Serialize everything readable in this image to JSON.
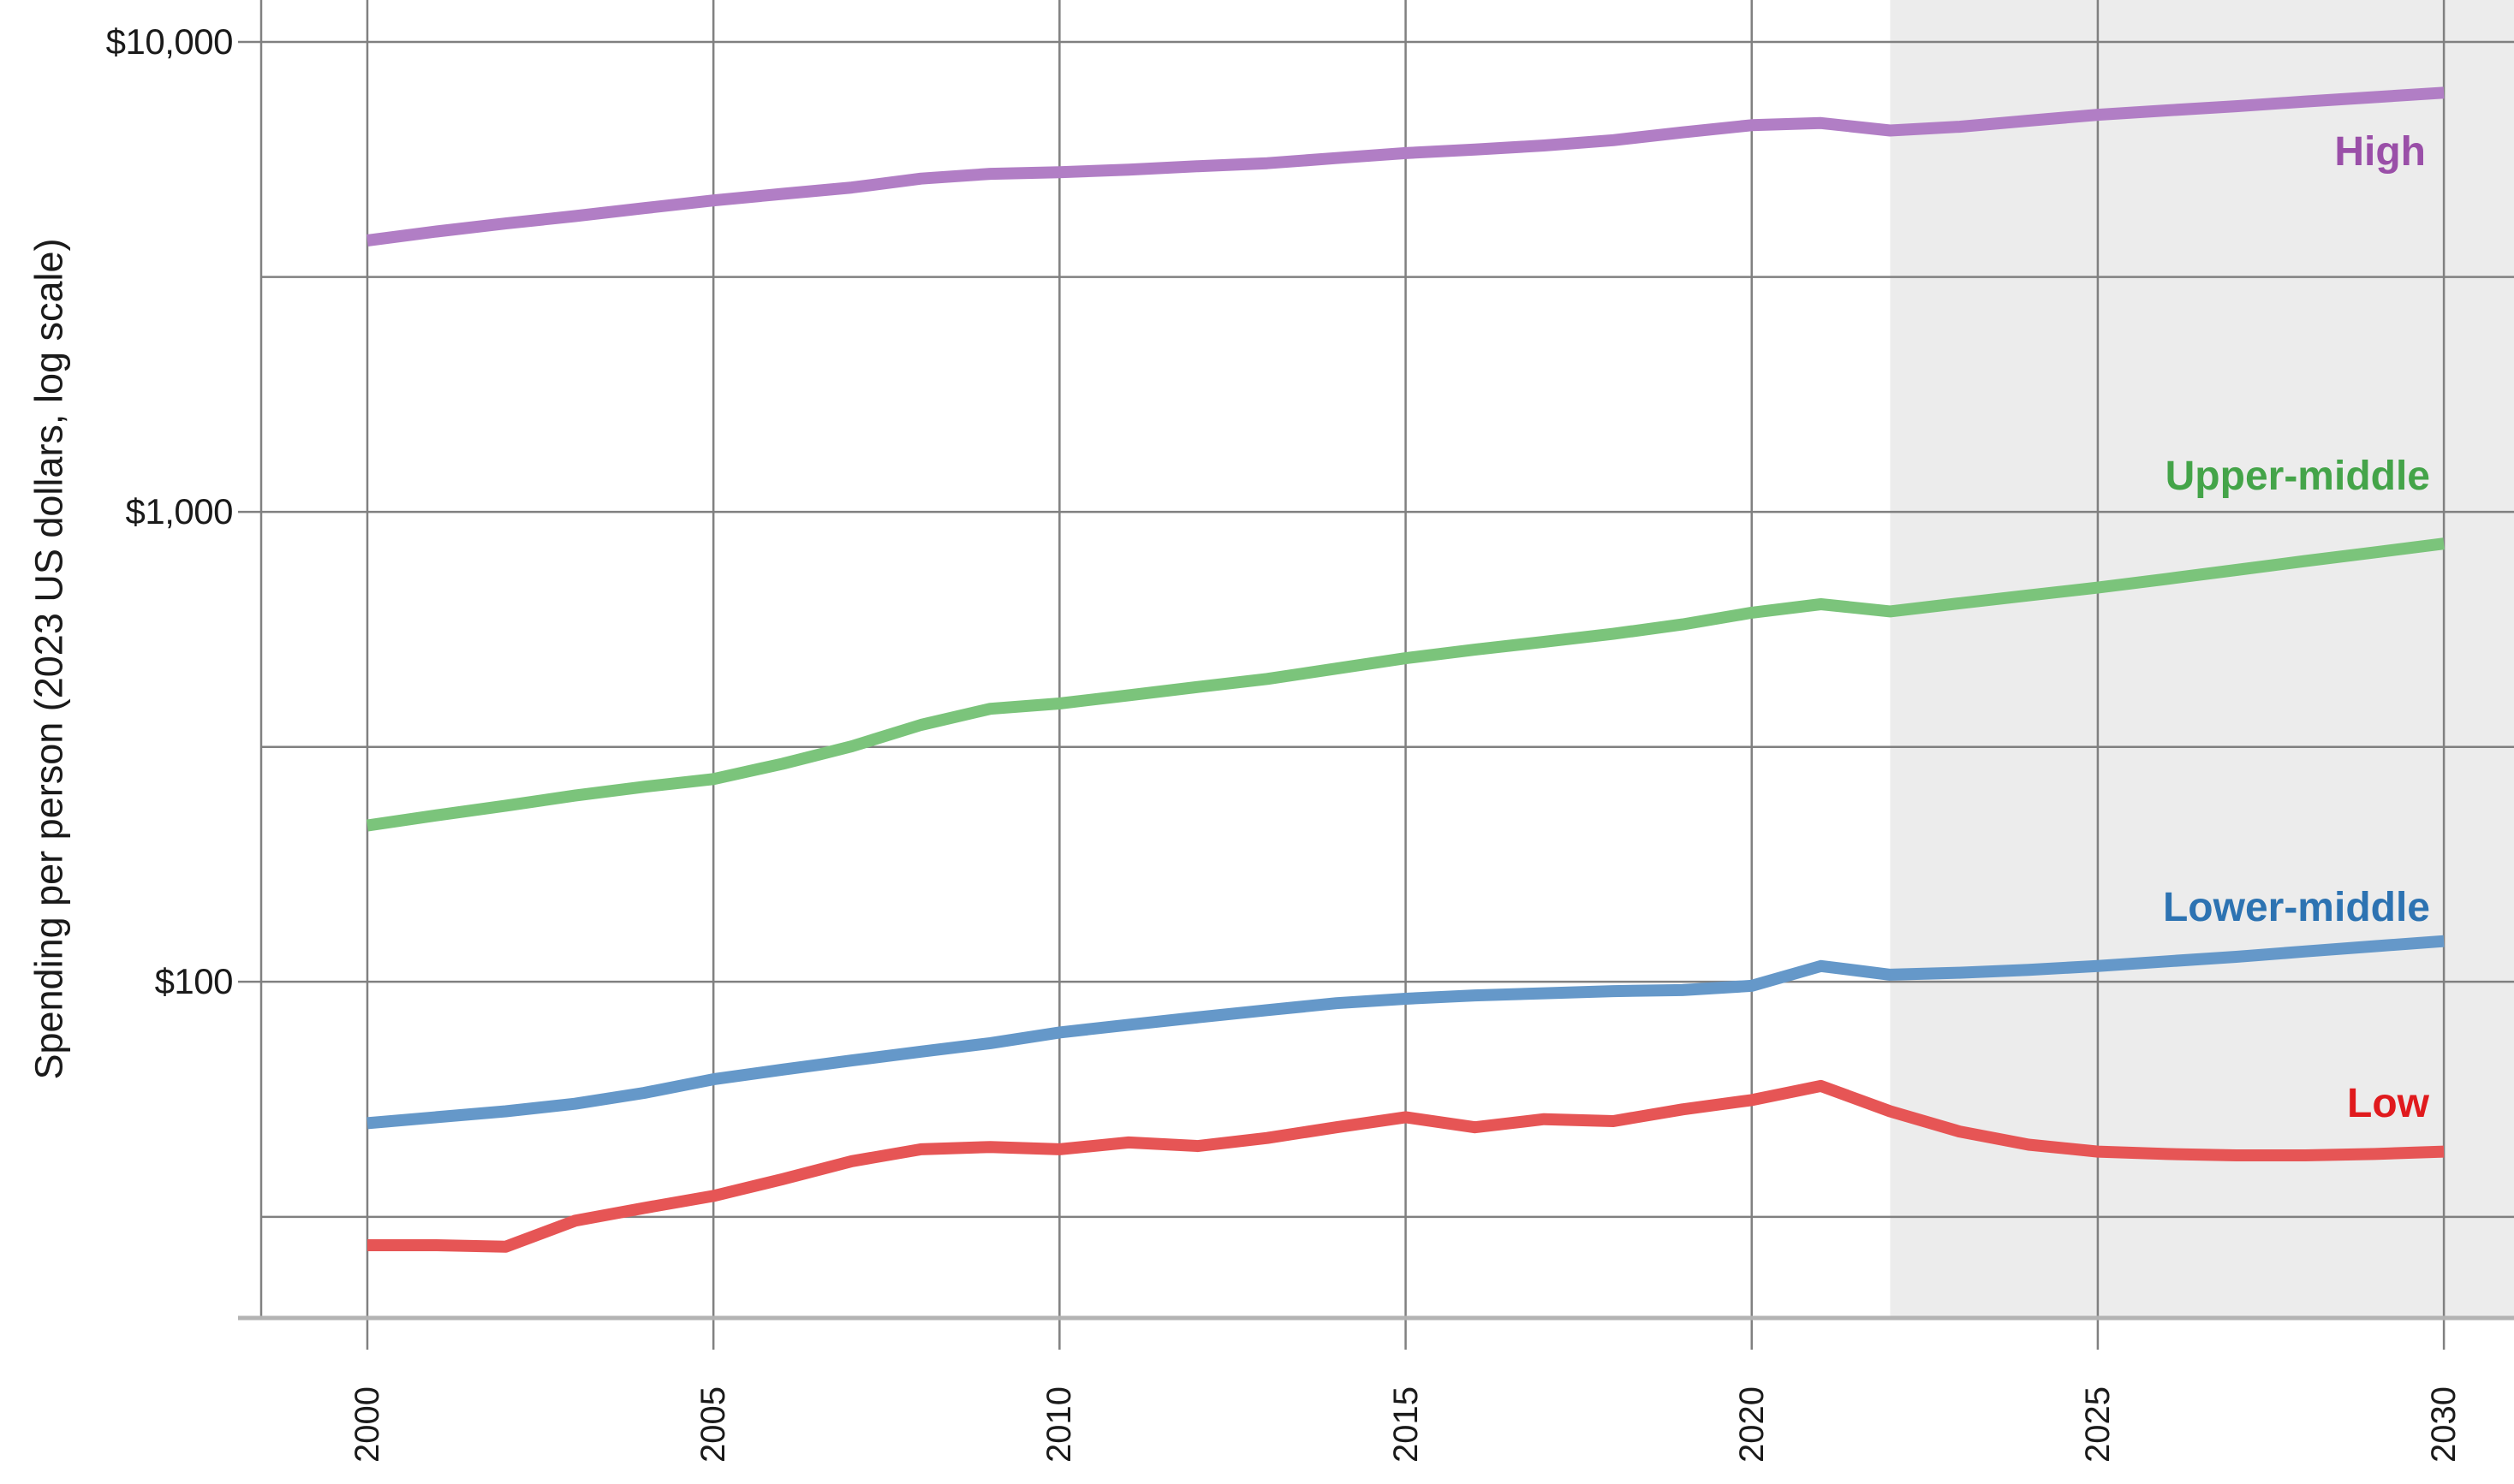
{
  "axis": {
    "y_title": "Spending per person (2023 US dollars, log scale)"
  },
  "chart_data": {
    "type": "line",
    "title": "",
    "xlabel": "",
    "ylabel": "Spending per person (2023 US dollars, log scale)",
    "y_scale": "log",
    "grid": true,
    "legend": "inline-right-labels",
    "xlim": [
      1998.466,
      2031.013
    ],
    "ylim": [
      19.25,
      12283
    ],
    "x": [
      2000,
      2001,
      2002,
      2003,
      2004,
      2005,
      2006,
      2007,
      2008,
      2009,
      2010,
      2011,
      2012,
      2013,
      2014,
      2015,
      2016,
      2017,
      2018,
      2019,
      2020,
      2021,
      2022,
      2023,
      2024,
      2025,
      2026,
      2027,
      2028,
      2029,
      2030
    ],
    "x_ticks": [
      {
        "label": "2000",
        "year": 2000
      },
      {
        "label": "2005",
        "year": 2005
      },
      {
        "label": "2010",
        "year": 2010
      },
      {
        "label": "2015",
        "year": 2015
      },
      {
        "label": "2020",
        "year": 2020
      },
      {
        "label": "2025",
        "year": 2025
      },
      {
        "label": "2030",
        "year": 2030
      }
    ],
    "y_ticks": [
      {
        "label": "$10,000",
        "value": 10000
      },
      {
        "label": "$1,000",
        "value": 1000
      },
      {
        "label": "$100",
        "value": 100
      }
    ],
    "y_minor_gridlines": [
      31.6,
      316,
      3162
    ],
    "projection": {
      "start_year": 2022,
      "shade_color": "#ECECEC"
    },
    "style": {
      "grid_color": "#808080",
      "axis_line_color": "#B3B3B3",
      "tick_text_color": "#1A1A1A",
      "background": "#FFFFFF",
      "line_width": 14
    },
    "series": [
      {
        "name": "High",
        "color": "#B17EC5",
        "label_color": "#9A4FA8",
        "values": [
          3780,
          3950,
          4110,
          4260,
          4430,
          4600,
          4750,
          4900,
          5120,
          5240,
          5280,
          5350,
          5440,
          5520,
          5660,
          5800,
          5900,
          6020,
          6180,
          6420,
          6650,
          6720,
          6480,
          6600,
          6800,
          7000,
          7150,
          7300,
          7470,
          7630,
          7800
        ]
      },
      {
        "name": "Upper-middle",
        "color": "#7BC47B",
        "label_color": "#44A449",
        "values": [
          215,
          226,
          237,
          249,
          260,
          270,
          291,
          317,
          352,
          381,
          391,
          407,
          424,
          441,
          464,
          488,
          509,
          529,
          550,
          576,
          610,
          636,
          614,
          639,
          664,
          690,
          720,
          752,
          786,
          820,
          856
        ]
      },
      {
        "name": "Lower-middle",
        "color": "#6598C9",
        "label_color": "#2D73B2",
        "values": [
          50,
          51.5,
          53,
          55,
          58,
          62,
          65,
          68,
          71,
          74,
          78,
          81,
          84,
          87,
          90,
          92,
          93.5,
          94.5,
          95.5,
          96,
          98,
          108,
          103.5,
          104.5,
          106,
          108,
          110.5,
          113,
          116,
          119,
          122
        ]
      },
      {
        "name": "Low",
        "color": "#E65555",
        "label_color": "#E01A1D",
        "values": [
          27.5,
          27.5,
          27.3,
          31,
          33,
          35,
          38,
          41.5,
          44,
          44.5,
          44,
          45.5,
          44.7,
          46.5,
          49,
          51.5,
          49,
          51,
          50.5,
          53.5,
          56,
          60,
          53,
          48,
          45,
          43.5,
          43,
          42.7,
          42.7,
          43,
          43.5
        ]
      }
    ]
  }
}
